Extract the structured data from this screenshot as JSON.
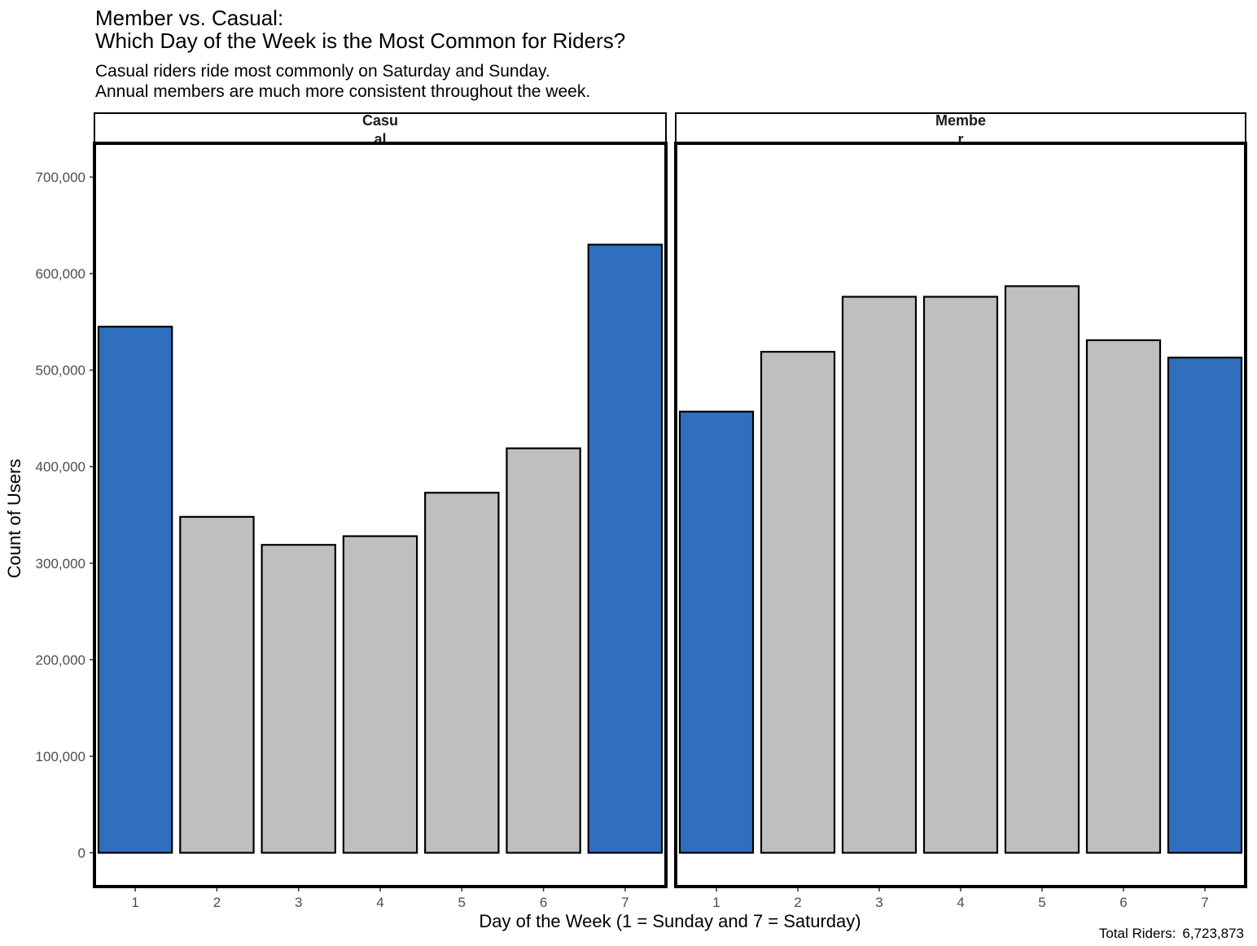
{
  "chart_data": {
    "type": "bar",
    "title_line1": "Member vs. Casual:",
    "title_line2": "Which Day of the Week is the Most Common for Riders?",
    "subtitle_line1": "Casual riders ride most commonly on Saturday and Sunday.",
    "subtitle_line2": "Annual members are much more consistent throughout the week.",
    "xlabel": "Day of the Week (1 = Sunday and 7 = Saturday)",
    "ylabel": "Count of Users",
    "caption_label": "Total Riders:",
    "caption_value": "6,723,873",
    "categories": [
      "1",
      "2",
      "3",
      "4",
      "5",
      "6",
      "7"
    ],
    "ylim": [
      -35000,
      735000
    ],
    "yticks": [
      0,
      100000,
      200000,
      300000,
      400000,
      500000,
      600000,
      700000
    ],
    "ytick_labels": [
      "0",
      "100,000",
      "200,000",
      "300,000",
      "400,000",
      "500,000",
      "600,000",
      "700,000"
    ],
    "highlight_color": "#306EBE",
    "base_color": "#BFBFBF",
    "panels": [
      {
        "strip_line1": "Casu",
        "strip_line2": "al",
        "values": [
          545000,
          348000,
          319000,
          328000,
          373000,
          419000,
          630000
        ],
        "highlight": [
          true,
          false,
          false,
          false,
          false,
          false,
          true
        ]
      },
      {
        "strip_line1": "Membe",
        "strip_line2": "r",
        "values": [
          457000,
          519000,
          576000,
          576000,
          587000,
          531000,
          513000
        ],
        "highlight": [
          true,
          false,
          false,
          false,
          false,
          false,
          true
        ]
      }
    ]
  }
}
